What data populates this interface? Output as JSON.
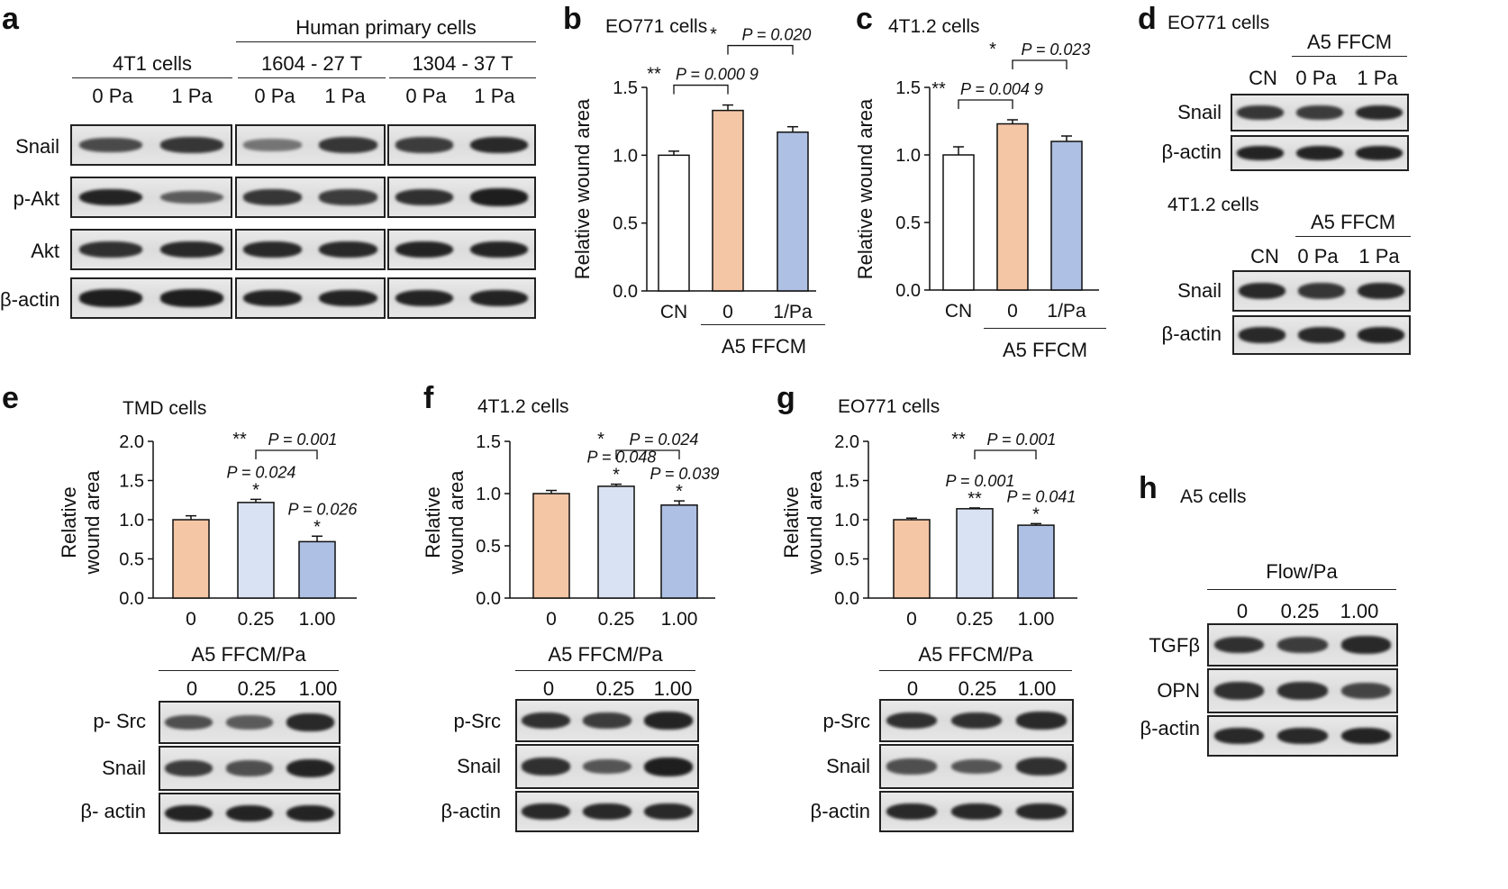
{
  "colors": {
    "orange": "#f5c6a5",
    "lightblue": "#d9e2f2",
    "blue": "#aec0e3",
    "white": "#ffffff",
    "band": "#1e1e1e"
  },
  "panels": {
    "a": {
      "label": "a",
      "group_header": "Human primary cells",
      "blocks": [
        {
          "header": "4T1 cells",
          "lanes": [
            "0 Pa",
            "1 Pa"
          ],
          "intensity": [
            [
              0.65,
              0.8
            ],
            [
              0.95,
              0.5
            ],
            [
              0.85,
              0.9
            ],
            [
              1.0,
              1.0
            ]
          ]
        },
        {
          "header": "1604 - 27 T",
          "lanes": [
            "0 Pa",
            "1 Pa"
          ],
          "intensity": [
            [
              0.3,
              0.8
            ],
            [
              0.8,
              0.75
            ],
            [
              0.9,
              0.9
            ],
            [
              0.95,
              0.95
            ]
          ]
        },
        {
          "header": "1304 - 37 T",
          "lanes": [
            "0 Pa",
            "1 Pa"
          ],
          "intensity": [
            [
              0.75,
              0.9
            ],
            [
              0.85,
              1.0
            ],
            [
              0.95,
              0.95
            ],
            [
              0.95,
              0.95
            ]
          ]
        }
      ],
      "rows": [
        "Snail",
        "p-Akt",
        "Akt",
        "β-actin"
      ]
    },
    "b": {
      "label": "b",
      "group_label": "A5 FFCM"
    },
    "c": {
      "label": "c",
      "group_label": "A5 FFCM"
    },
    "d": {
      "label": "d",
      "top": {
        "title": "EO771 cells",
        "group_header": "A5 FFCM",
        "lanes": [
          "CN",
          "0 Pa",
          "1 Pa"
        ],
        "rows": [
          "Snail",
          "β-actin"
        ],
        "intensity": [
          [
            0.8,
            0.75,
            0.9
          ],
          [
            0.95,
            0.95,
            0.95
          ]
        ]
      },
      "bottom": {
        "title": "4T1.2 cells",
        "group_header": "A5 FFCM",
        "lanes": [
          "CN",
          "0 Pa",
          "1 Pa"
        ],
        "rows": [
          "Snail",
          "β-actin"
        ],
        "intensity": [
          [
            0.9,
            0.8,
            0.9
          ],
          [
            0.9,
            0.9,
            0.95
          ]
        ]
      }
    },
    "e": {
      "label": "e",
      "blot_header": "A5 FFCM/Pa",
      "lanes": [
        "0",
        "0.25",
        "1.00"
      ],
      "rows": [
        "p- Src",
        "Snail",
        "β- actin"
      ],
      "intensity": [
        [
          0.6,
          0.5,
          0.9
        ],
        [
          0.75,
          0.6,
          0.95
        ],
        [
          0.95,
          0.95,
          0.95
        ]
      ]
    },
    "f": {
      "label": "f",
      "blot_header": "A5 FFCM/Pa",
      "lanes": [
        "0",
        "0.25",
        "1.00"
      ],
      "rows": [
        "p-Src",
        "Snail",
        "β-actin"
      ],
      "intensity": [
        [
          0.85,
          0.75,
          0.95
        ],
        [
          0.85,
          0.55,
          1.0
        ],
        [
          0.9,
          0.9,
          0.9
        ]
      ]
    },
    "g": {
      "label": "g",
      "blot_header": "A5 FFCM/Pa",
      "lanes": [
        "0",
        "0.25",
        "1.00"
      ],
      "rows": [
        "p-Src",
        "Snail",
        "β-actin"
      ],
      "intensity": [
        [
          0.85,
          0.85,
          0.9
        ],
        [
          0.6,
          0.55,
          0.85
        ],
        [
          0.9,
          0.9,
          0.9
        ]
      ]
    },
    "h": {
      "label": "h",
      "title": "A5 cells",
      "blot_header": "Flow/Pa",
      "lanes": [
        "0",
        "0.25",
        "1.00"
      ],
      "rows": [
        "TGFβ",
        "OPN",
        "β-actin"
      ],
      "intensity": [
        [
          0.85,
          0.75,
          0.9
        ],
        [
          0.85,
          0.85,
          0.7
        ],
        [
          0.9,
          0.9,
          0.95
        ]
      ]
    }
  },
  "chart_data": [
    {
      "panel": "b",
      "type": "bar",
      "title": "EO771 cells",
      "ylabel": "Relative wound area",
      "categories": [
        "CN",
        "0",
        "1/Pa"
      ],
      "values": [
        1.0,
        1.33,
        1.17
      ],
      "errors": [
        0.03,
        0.04,
        0.04
      ],
      "fills": [
        "white",
        "orange",
        "blue"
      ],
      "ylim": [
        0,
        1.5
      ],
      "yticks": [
        "0.0",
        "0.5",
        "1.0",
        "1.5"
      ],
      "brackets": [
        {
          "from": 0,
          "to": 1,
          "stars": "**",
          "p": "P = 0.000 9"
        },
        {
          "from": 1,
          "to": 2,
          "stars": "*",
          "p": "P = 0.020"
        }
      ],
      "bar_labels": [
        "",
        "",
        ""
      ]
    },
    {
      "panel": "c",
      "type": "bar",
      "title": "4T1.2 cells",
      "ylabel": "Relative wound area",
      "categories": [
        "CN",
        "0",
        "1/Pa"
      ],
      "values": [
        1.0,
        1.23,
        1.1
      ],
      "errors": [
        0.06,
        0.03,
        0.04
      ],
      "fills": [
        "white",
        "orange",
        "blue"
      ],
      "ylim": [
        0,
        1.5
      ],
      "yticks": [
        "0.0",
        "0.5",
        "1.0",
        "1.5"
      ],
      "brackets": [
        {
          "from": 0,
          "to": 1,
          "stars": "**",
          "p": "P = 0.004 9"
        },
        {
          "from": 1,
          "to": 2,
          "stars": "*",
          "p": "P = 0.023"
        }
      ],
      "bar_labels": [
        "",
        "",
        ""
      ]
    },
    {
      "panel": "e",
      "type": "bar",
      "title": "TMD cells",
      "ylabel": "Relative wound area",
      "categories": [
        "0",
        "0.25",
        "1.00"
      ],
      "values": [
        1.0,
        1.22,
        0.72
      ],
      "errors": [
        0.05,
        0.04,
        0.07
      ],
      "fills": [
        "orange",
        "lightblue",
        "blue"
      ],
      "ylim": [
        0,
        2.0
      ],
      "yticks": [
        "0.0",
        "0.5",
        "1.0",
        "1.5",
        "2.0"
      ],
      "brackets": [
        {
          "from": 1,
          "to": 2,
          "stars": "**",
          "p": "P = 0.001"
        }
      ],
      "bar_labels": [
        "",
        "*",
        "*"
      ],
      "bar_p": [
        "",
        "P = 0.024",
        "P = 0.026"
      ]
    },
    {
      "panel": "f",
      "type": "bar",
      "title": "4T1.2 cells",
      "ylabel": "Relative wound area",
      "categories": [
        "0",
        "0.25",
        "1.00"
      ],
      "values": [
        1.0,
        1.07,
        0.89
      ],
      "errors": [
        0.03,
        0.02,
        0.04
      ],
      "fills": [
        "orange",
        "lightblue",
        "blue"
      ],
      "ylim": [
        0,
        1.5
      ],
      "yticks": [
        "0.0",
        "0.5",
        "1.0",
        "1.5"
      ],
      "brackets": [
        {
          "from": 1,
          "to": 2,
          "stars": "*",
          "p": "P = 0.024"
        }
      ],
      "bar_labels": [
        "",
        "*",
        "*"
      ],
      "bar_p": [
        "",
        "P = 0.048",
        "P = 0.039"
      ]
    },
    {
      "panel": "g",
      "type": "bar",
      "title": "EO771 cells",
      "ylabel": "Relative wound area",
      "categories": [
        "0",
        "0.25",
        "1.00"
      ],
      "values": [
        1.0,
        1.14,
        0.93
      ],
      "errors": [
        0.02,
        0.01,
        0.02
      ],
      "fills": [
        "orange",
        "lightblue",
        "blue"
      ],
      "ylim": [
        0,
        2.0
      ],
      "yticks": [
        "0.0",
        "0.5",
        "1.0",
        "1.5",
        "2.0"
      ],
      "brackets": [
        {
          "from": 1,
          "to": 2,
          "stars": "**",
          "p": "P = 0.001"
        }
      ],
      "bar_labels": [
        "",
        "**",
        "*"
      ],
      "bar_p": [
        "",
        "P = 0.001",
        "P = 0.041"
      ]
    }
  ]
}
